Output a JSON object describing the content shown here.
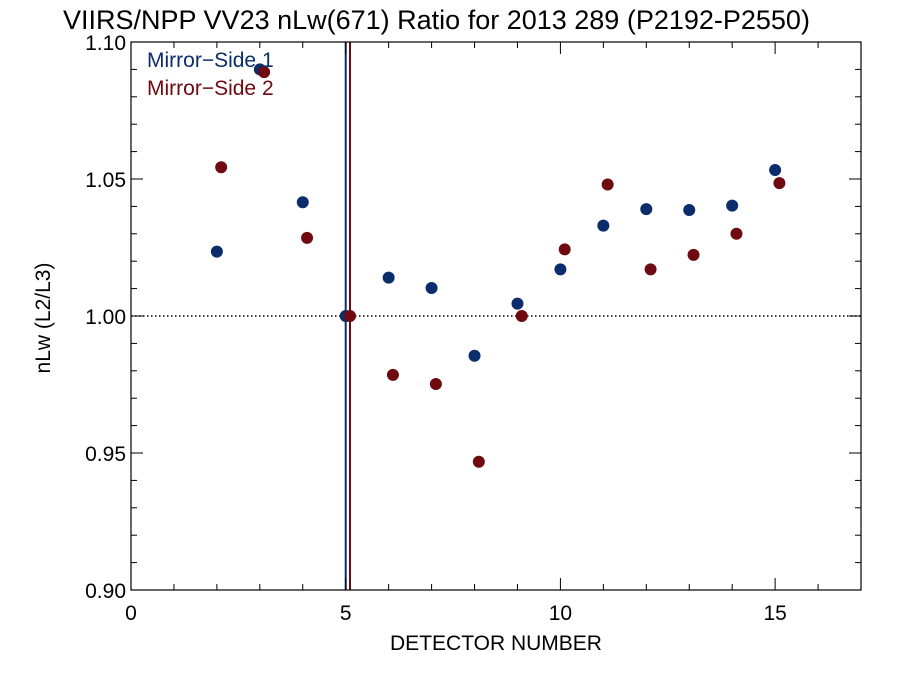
{
  "chart_data": {
    "type": "scatter",
    "title": "VIIRS/NPP VV23 nLw(671) Ratio for 2013 289 (P2192-P2550)",
    "xlabel": "DETECTOR NUMBER",
    "ylabel": "nLw (L2/L3)",
    "xlim": [
      0,
      17
    ],
    "ylim": [
      0.9,
      1.1
    ],
    "x_ticks": [
      0,
      5,
      10,
      15
    ],
    "x_tick_labels": [
      "0",
      "5",
      "10",
      "15"
    ],
    "x_minor_step": 1,
    "y_ticks": [
      0.9,
      0.95,
      1.0,
      1.05,
      1.1
    ],
    "y_tick_labels": [
      "0.90",
      "0.95",
      "1.00",
      "1.05",
      "1.10"
    ],
    "y_minor_step": 0.01,
    "reference_line": {
      "y": 1.0,
      "style": "dotted"
    },
    "vertical_lines": [
      {
        "x": 5.0,
        "color": "#0b2d6b"
      },
      {
        "x": 5.1,
        "color": "#6e0a10"
      }
    ],
    "legend": {
      "placement": "top-left"
    },
    "series": [
      {
        "name": "Mirror−Side 1",
        "color": "#0b2d6b",
        "x": [
          2,
          3,
          4,
          5,
          6,
          7,
          8,
          9,
          10,
          11,
          12,
          13,
          14,
          15
        ],
        "y": [
          1.0235,
          1.09,
          1.0415,
          1.0,
          1.014,
          1.0102,
          0.9855,
          1.0045,
          1.017,
          1.033,
          1.039,
          1.0387,
          1.0403,
          1.0533
        ]
      },
      {
        "name": "Mirror−Side 2",
        "color": "#6e0a10",
        "x": [
          2.1,
          3.1,
          4.1,
          5.1,
          6.1,
          7.1,
          8.1,
          9.1,
          10.1,
          11.1,
          12.1,
          13.1,
          14.1,
          15.1
        ],
        "y": [
          1.0543,
          1.089,
          1.0285,
          1.0,
          0.9785,
          0.9752,
          0.9468,
          1.0,
          1.0243,
          1.048,
          1.017,
          1.0223,
          1.03,
          1.0485
        ]
      }
    ]
  }
}
